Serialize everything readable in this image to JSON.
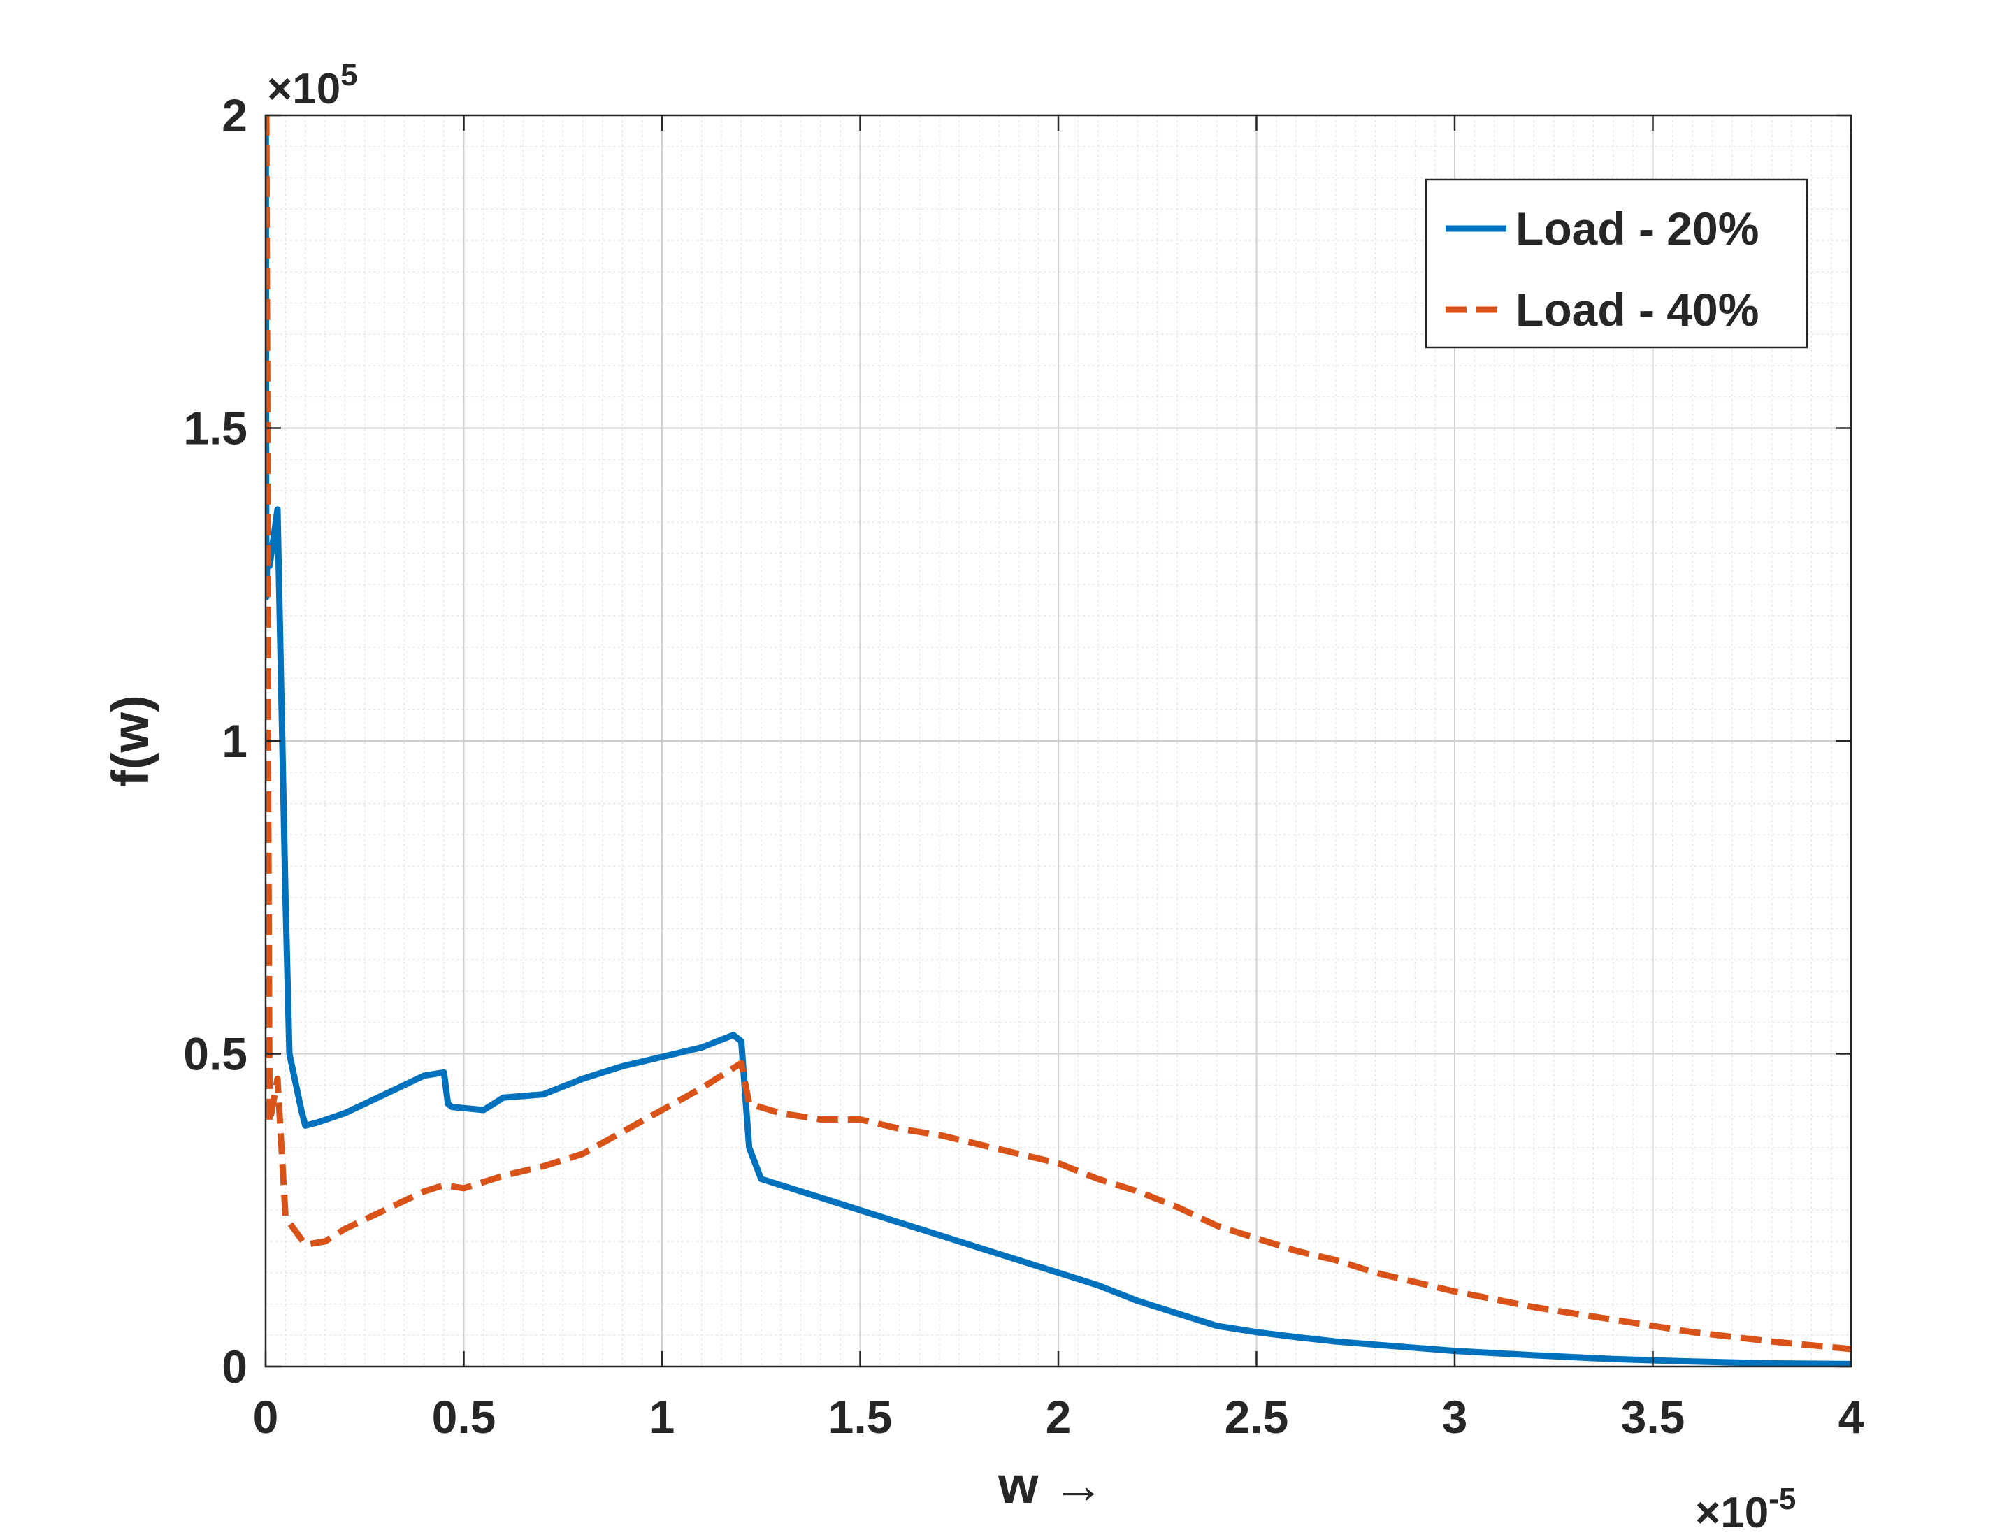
{
  "chart_data": {
    "type": "line",
    "xlabel": "w →",
    "ylabel": "f(w)",
    "xlim": [
      0,
      4e-05
    ],
    "ylim": [
      0,
      200000
    ],
    "x_exponent_label": "×10",
    "x_exponent_power": "-5",
    "y_exponent_label": "×10",
    "y_exponent_power": "5",
    "xticks": [
      0,
      5e-06,
      1e-05,
      1.5e-05,
      2e-05,
      2.5e-05,
      3e-05,
      3.5e-05,
      4e-05
    ],
    "xtick_labels": [
      "0",
      "0.5",
      "1",
      "1.5",
      "2",
      "2.5",
      "3",
      "3.5",
      "4"
    ],
    "yticks": [
      0,
      50000,
      100000,
      150000,
      200000
    ],
    "ytick_labels": [
      "0",
      "0.5",
      "1",
      "1.5",
      "2"
    ],
    "grid": "on (major and minor)",
    "legend_position": "top-right",
    "series": [
      {
        "name": "Load - 20%",
        "color": "#0072BD",
        "style": "solid",
        "x": [
          0,
          5e-09,
          1e-08,
          2e-08,
          4e-08,
          1e-07,
          3e-07,
          5e-07,
          6e-07,
          9e-07,
          1e-06,
          1.3e-06,
          2e-06,
          3e-06,
          4e-06,
          4.5e-06,
          4.6e-06,
          4.7e-06,
          5.5e-06,
          6e-06,
          7e-06,
          8e-06,
          9e-06,
          1e-05,
          1.1e-05,
          1.18e-05,
          1.2e-05,
          1.22e-05,
          1.25e-05,
          1.3e-05,
          1.4e-05,
          1.5e-05,
          1.6e-05,
          1.7e-05,
          1.8e-05,
          1.9e-05,
          2e-05,
          2.1e-05,
          2.2e-05,
          2.3e-05,
          2.4e-05,
          2.5e-05,
          2.6e-05,
          2.7e-05,
          2.8e-05,
          2.9e-05,
          3e-05,
          3.2e-05,
          3.4e-05,
          3.6e-05,
          3.8e-05,
          4e-05
        ],
        "values": [
          200000,
          200000,
          150000,
          123000,
          130000,
          128000,
          137000,
          75000,
          50000,
          41000,
          38500,
          39000,
          40500,
          43500,
          46500,
          47000,
          42000,
          41500,
          41000,
          43000,
          43500,
          46000,
          48000,
          49500,
          51000,
          53000,
          52000,
          35000,
          30000,
          29000,
          27000,
          25000,
          23000,
          21000,
          19000,
          17000,
          15000,
          13000,
          10500,
          8500,
          6500,
          5500,
          4700,
          4000,
          3500,
          3000,
          2500,
          1800,
          1200,
          800,
          500,
          400
        ]
      },
      {
        "name": "Load - 40%",
        "color": "#D95319",
        "style": "dashed",
        "x": [
          0,
          2e-08,
          4e-08,
          6e-08,
          1e-07,
          3e-07,
          5e-07,
          6e-07,
          1e-06,
          1.5e-06,
          2e-06,
          3e-06,
          4e-06,
          4.5e-06,
          5e-06,
          6e-06,
          7e-06,
          8e-06,
          9e-06,
          1e-05,
          1.1e-05,
          1.2e-05,
          1.22e-05,
          1.3e-05,
          1.4e-05,
          1.5e-05,
          1.6e-05,
          1.7e-05,
          1.8e-05,
          1.9e-05,
          2e-05,
          2.1e-05,
          2.2e-05,
          2.3e-05,
          2.4e-05,
          2.5e-05,
          2.6e-05,
          2.7e-05,
          2.8e-05,
          2.9e-05,
          3e-05,
          3.2e-05,
          3.4e-05,
          3.6e-05,
          3.8e-05,
          4e-05
        ],
        "values": [
          200000,
          200000,
          160000,
          100000,
          39000,
          46000,
          24000,
          23000,
          19500,
          20000,
          22000,
          25000,
          28000,
          29000,
          28500,
          30500,
          32000,
          34000,
          37500,
          41000,
          44500,
          48500,
          42000,
          40500,
          39500,
          39500,
          38000,
          37000,
          35500,
          34000,
          32500,
          30000,
          28000,
          25500,
          22500,
          20500,
          18500,
          17000,
          15000,
          13500,
          12000,
          9500,
          7500,
          5500,
          4000,
          2800
        ]
      }
    ]
  }
}
